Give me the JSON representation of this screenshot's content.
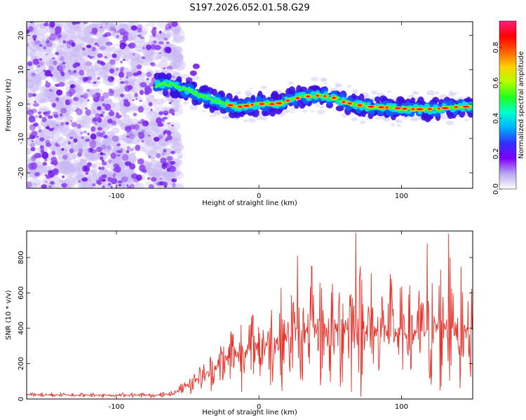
{
  "title": "S197.2026.052.01.58.G29",
  "chart_data": [
    {
      "type": "heatmap",
      "name": "spectrogram",
      "xlabel": "Height of straight line (km)",
      "ylabel": "Frequency (Hz)",
      "xlim": [
        -163,
        150
      ],
      "ylim": [
        -24.5,
        24
      ],
      "xticks": [
        -100,
        0,
        100
      ],
      "xtick_labels": [
        "-100",
        "0",
        "100"
      ],
      "yticks": [
        -20,
        -10,
        0,
        10,
        20
      ],
      "ytick_labels": [
        "-20",
        "-10",
        "0",
        "10",
        "20"
      ],
      "ridge": {
        "x": [
          -72,
          -65,
          -60,
          -55,
          -50,
          -45,
          -40,
          -35,
          -30,
          -25,
          -20,
          -15,
          -10,
          -5,
          0,
          5,
          10,
          15,
          20,
          25,
          30,
          40,
          50,
          55,
          60,
          70,
          80,
          90,
          100,
          110,
          120,
          130,
          140,
          150
        ],
        "y": [
          5.5,
          5.8,
          5.5,
          4.5,
          4,
          3.5,
          2.5,
          1.5,
          0.8,
          0.2,
          -0.3,
          -0.8,
          -0.6,
          -0.2,
          0,
          0.1,
          0,
          0.3,
          1,
          1.5,
          2,
          2.5,
          2.2,
          1.5,
          0.5,
          -0.3,
          -0.8,
          -1,
          -1.3,
          -1.5,
          -1.4,
          -1.2,
          -0.8,
          -0.7
        ]
      },
      "noise_region_x": [
        -163,
        -65
      ],
      "colorbar": {
        "label": "Normalized spectral amplitude",
        "range": [
          0.0,
          0.95
        ],
        "ticks": [
          0.0,
          0.2,
          0.4,
          0.6,
          0.8
        ],
        "tick_labels": [
          "0.0",
          "0.2",
          "0.4",
          "0.6",
          "0.8"
        ],
        "colors": [
          "#ffffff",
          "#b8a8f0",
          "#7f00ff",
          "#3030ff",
          "#00b0ff",
          "#00ffd0",
          "#20ff20",
          "#b0ff00",
          "#ffd000",
          "#ff6000",
          "#ff0000",
          "#ff2080"
        ]
      }
    },
    {
      "type": "line",
      "name": "snr",
      "xlabel": "Height of straight line (km)",
      "ylabel": "SNR (10 * v/v)",
      "xlim": [
        -163,
        150
      ],
      "ylim": [
        0,
        950
      ],
      "xticks": [
        -100,
        0,
        100
      ],
      "xtick_labels": [
        "-100",
        "0",
        "100"
      ],
      "yticks": [
        0,
        200,
        400,
        600,
        800
      ],
      "ytick_labels": [
        "0",
        "200",
        "400",
        "600",
        "800"
      ],
      "color": "#e8322a",
      "envelope": {
        "x": [
          -163,
          -120,
          -70,
          -60,
          -55,
          -50,
          -45,
          -40,
          -35,
          -30,
          -25,
          -20,
          -10,
          0,
          10,
          20,
          25,
          30,
          40,
          50,
          60,
          70,
          80,
          90,
          100,
          110,
          120,
          130,
          140,
          145,
          150
        ],
        "mean": [
          25,
          22,
          22,
          30,
          60,
          80,
          110,
          130,
          150,
          180,
          210,
          240,
          270,
          300,
          320,
          350,
          380,
          360,
          390,
          370,
          420,
          400,
          380,
          390,
          360,
          380,
          390,
          420,
          400,
          380,
          400
        ],
        "amp": [
          15,
          12,
          15,
          20,
          40,
          60,
          80,
          90,
          100,
          130,
          170,
          200,
          220,
          240,
          260,
          290,
          330,
          280,
          320,
          330,
          380,
          380,
          330,
          310,
          290,
          300,
          330,
          380,
          360,
          300,
          250
        ]
      },
      "peaks": [
        {
          "x": 68,
          "y": 940
        },
        {
          "x": 133,
          "y": 935
        },
        {
          "x": 118,
          "y": 880
        },
        {
          "x": 27,
          "y": 810
        },
        {
          "x": 37,
          "y": 750
        }
      ]
    }
  ]
}
